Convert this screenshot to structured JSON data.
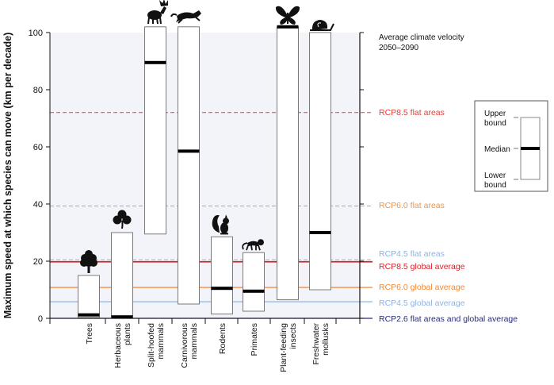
{
  "chart_data": {
    "type": "bar",
    "title": "",
    "ylabel": "Maximum speed at which species can move (km per decade)",
    "xlabel": "",
    "ylim": [
      0,
      100
    ],
    "yticks": [
      0,
      20,
      40,
      60,
      80,
      100
    ],
    "grid": false,
    "categories": [
      {
        "line1": "Trees",
        "line2": "",
        "icon": "tree-icon"
      },
      {
        "line1": "Herbaceous",
        "line2": "plants",
        "icon": "clover-leaf-icon"
      },
      {
        "line1": "Split-hoofed",
        "line2": "mammals",
        "icon": "moose-icon"
      },
      {
        "line1": "Carnivorous",
        "line2": "mammals",
        "icon": "running-cat-icon"
      },
      {
        "line1": "Rodents",
        "line2": "",
        "icon": "squirrel-icon"
      },
      {
        "line1": "Primates",
        "line2": "",
        "icon": "monkey-icon"
      },
      {
        "line1": "Plant-feeding",
        "line2": "insects",
        "icon": "butterfly-icon"
      },
      {
        "line1": "Freshwater",
        "line2": "mollusks",
        "icon": "snail-icon"
      }
    ],
    "series": [
      {
        "lower": 0.3,
        "median": 1.2,
        "upper": 15
      },
      {
        "lower": 0,
        "median": 0.5,
        "upper": 30
      },
      {
        "lower": 29.5,
        "median": 89.5,
        "upper": 102
      },
      {
        "lower": 5,
        "median": 58.5,
        "upper": 102
      },
      {
        "lower": 1.5,
        "median": 10.5,
        "upper": 28.5
      },
      {
        "lower": 2.5,
        "median": 9.5,
        "upper": 23
      },
      {
        "lower": 6.5,
        "median": 102,
        "upper": 102
      },
      {
        "lower": 10,
        "median": 30,
        "upper": 100
      }
    ],
    "reference_heading": [
      "Average climate velocity",
      "2050–2090"
    ],
    "reference_lines": [
      {
        "label": "RCP8.5 flat areas",
        "value": 72,
        "color": "#e0403a",
        "dash": true
      },
      {
        "label": "RCP6.0 flat areas",
        "value": 39.3,
        "color": "#f0944a",
        "dash": true
      },
      {
        "label": "RCP4.5 flat areas",
        "value": 20.5,
        "color": "#8fb3de",
        "dash": true
      },
      {
        "label": "RCP8.5 global average",
        "value": 19.8,
        "color": "#d9232a",
        "dash": false
      },
      {
        "label": "RCP6.0 global average",
        "value": 10.8,
        "color": "#f08a3c",
        "dash": false
      },
      {
        "label": "RCP4.5 global average",
        "value": 5.8,
        "color": "#8fb3de",
        "dash": false
      },
      {
        "label": "RCP2.6  flat areas and global average",
        "value": 0,
        "color": "#2a2a7a",
        "dash": false
      }
    ],
    "legend": {
      "position": "right",
      "upper": [
        "Upper",
        "bound"
      ],
      "median": [
        "Median"
      ],
      "lower": [
        "Lower",
        "bound"
      ]
    },
    "colors": {
      "plot_background": "#f3f4fa",
      "box_fill": "#ffffff",
      "box_stroke": "#7a7a7a",
      "median": "#000000"
    }
  }
}
